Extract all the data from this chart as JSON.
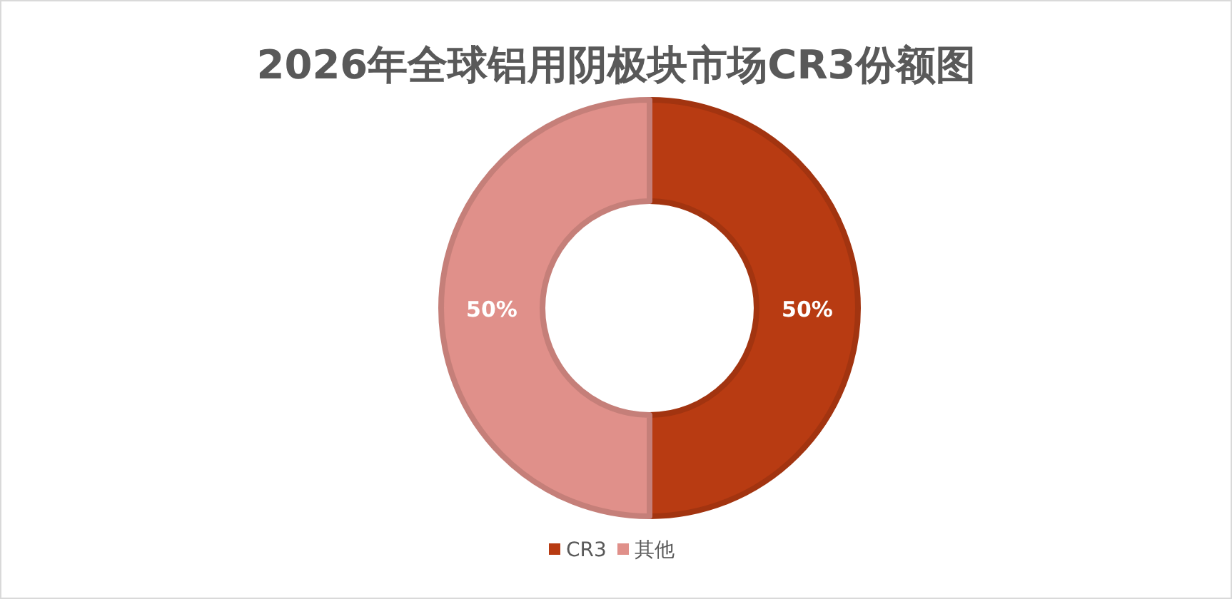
{
  "chart_data": {
    "type": "donut",
    "title": "2026年全球铝用阴极块市场CR3份额图",
    "categories": [
      "CR3",
      "其他"
    ],
    "values": [
      50,
      50
    ],
    "colors": [
      "#b83b12",
      "#e0908a"
    ],
    "value_labels": [
      "50%",
      "50%"
    ],
    "legend": "bottom"
  }
}
